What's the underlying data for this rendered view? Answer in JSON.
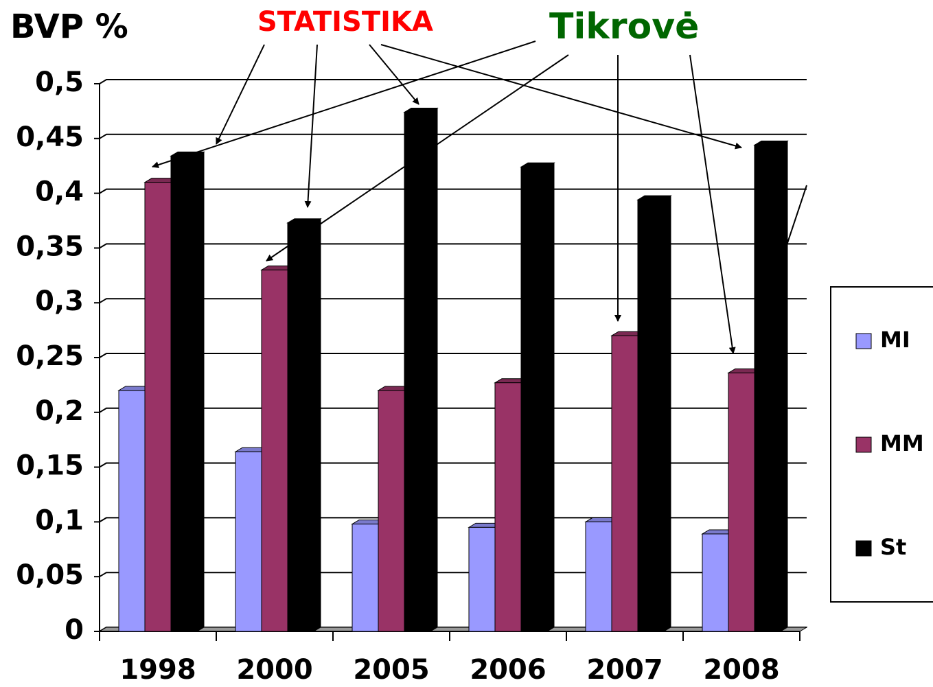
{
  "chart_data": {
    "type": "bar3d",
    "title": "BVP %",
    "annotations": [
      {
        "text": "STATISTIKA",
        "color": "#ff0000"
      },
      {
        "text": "Tikrovė",
        "color": "#006600"
      }
    ],
    "categories": [
      "1998",
      "2000",
      "2005",
      "2006",
      "2007",
      "2008"
    ],
    "series": [
      {
        "name": "MI",
        "color": "#9999ff",
        "values": [
          0.22,
          0.164,
          0.098,
          0.095,
          0.1,
          0.089
        ]
      },
      {
        "name": "MM",
        "color": "#993366",
        "values": [
          0.41,
          0.33,
          0.22,
          0.227,
          0.27,
          0.236
        ]
      },
      {
        "name": "St",
        "color": "#000000",
        "values": [
          0.434,
          0.373,
          0.474,
          0.424,
          0.394,
          0.444
        ]
      }
    ],
    "ylim": [
      0,
      0.5
    ],
    "yticks": [
      0,
      {
        "value": 0.05,
        "label": "0,05"
      },
      {
        "value": 0.1,
        "label": "0,1"
      },
      {
        "value": 0.15,
        "label": "0,15"
      },
      {
        "value": 0.2,
        "label": "0,2"
      },
      {
        "value": 0.25,
        "label": "0,25"
      },
      {
        "value": 0.3,
        "label": "0,3"
      },
      {
        "value": 0.35,
        "label": "0,35"
      },
      {
        "value": 0.4,
        "label": "0,4"
      },
      {
        "value": 0.45,
        "label": "0,45"
      },
      {
        "value": 0.5,
        "label": "0,5"
      }
    ],
    "grid": true,
    "legend": "right"
  }
}
